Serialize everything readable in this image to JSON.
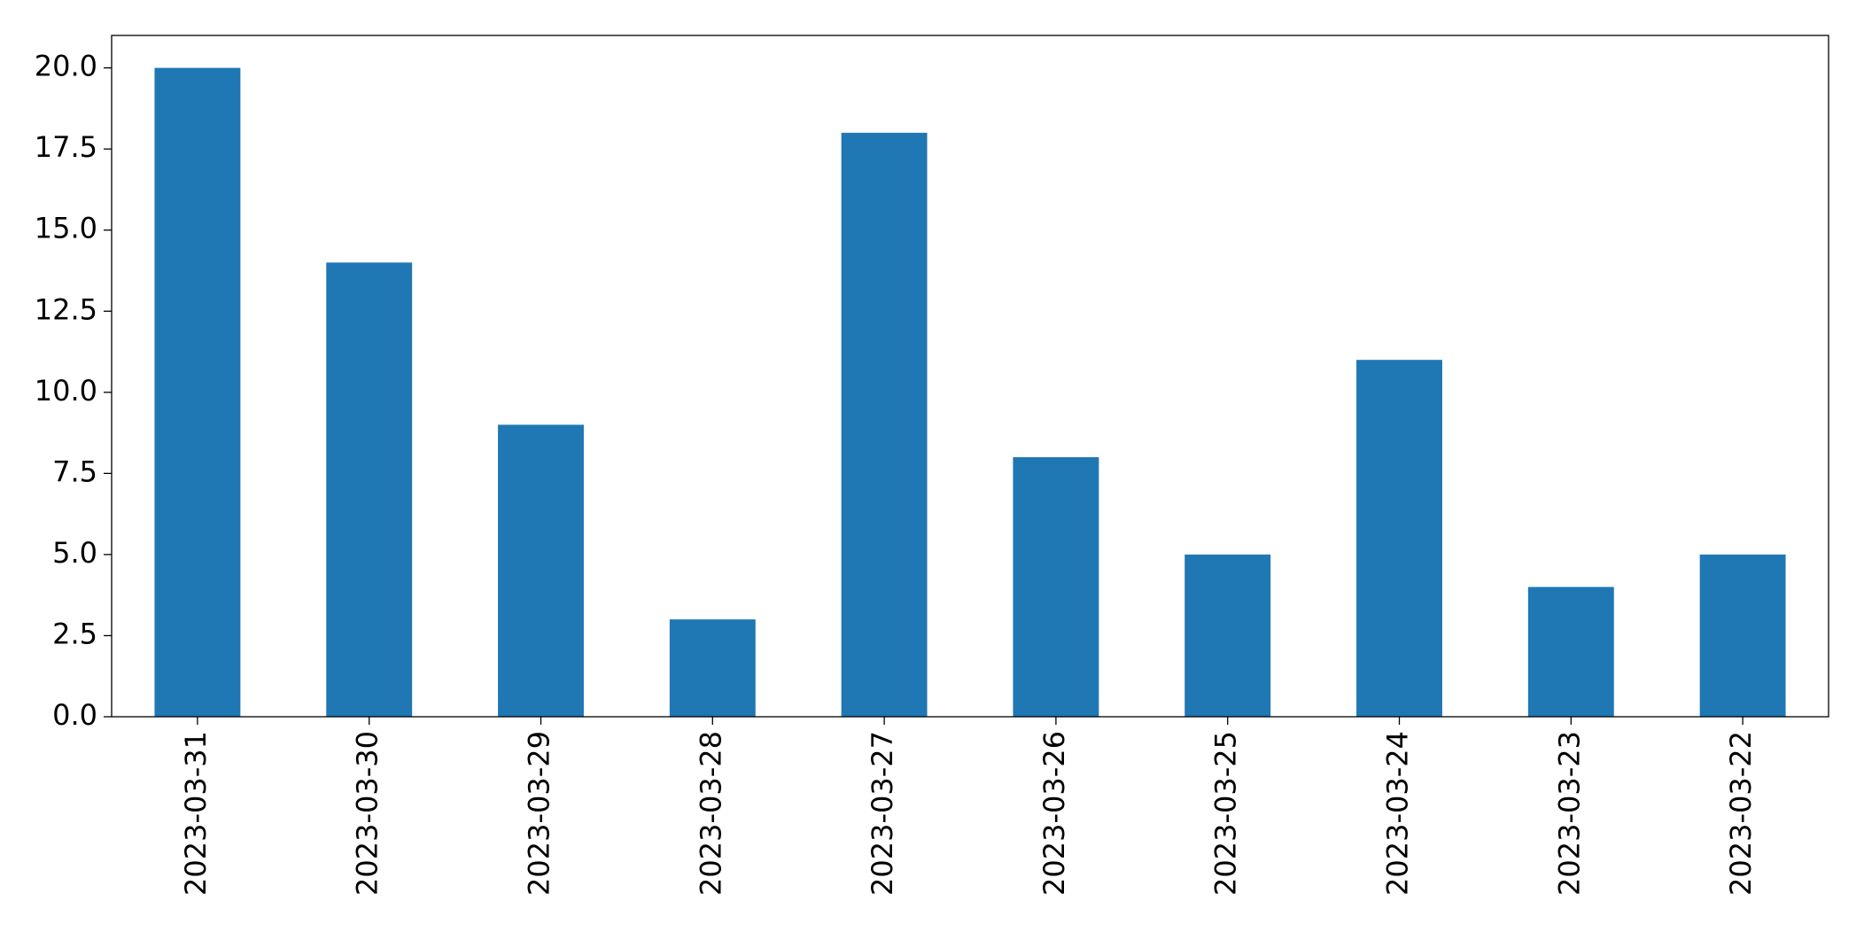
{
  "chart_data": {
    "type": "bar",
    "categories": [
      "2023-03-31",
      "2023-03-30",
      "2023-03-29",
      "2023-03-28",
      "2023-03-27",
      "2023-03-26",
      "2023-03-25",
      "2023-03-24",
      "2023-03-23",
      "2023-03-22"
    ],
    "values": [
      20,
      14,
      9,
      3,
      18,
      8,
      5,
      11,
      4,
      5
    ],
    "color": "#1f77b4",
    "ylim": [
      0,
      21
    ],
    "yticks": [
      {
        "value": 0,
        "label": "0.0"
      },
      {
        "value": 2.5,
        "label": "2.5"
      },
      {
        "value": 5,
        "label": "5.0"
      },
      {
        "value": 7.5,
        "label": "7.5"
      },
      {
        "value": 10,
        "label": "10.0"
      },
      {
        "value": 12.5,
        "label": "12.5"
      },
      {
        "value": 15,
        "label": "15.0"
      },
      {
        "value": 17.5,
        "label": "17.5"
      },
      {
        "value": 20,
        "label": "20.0"
      }
    ],
    "grid": false
  }
}
